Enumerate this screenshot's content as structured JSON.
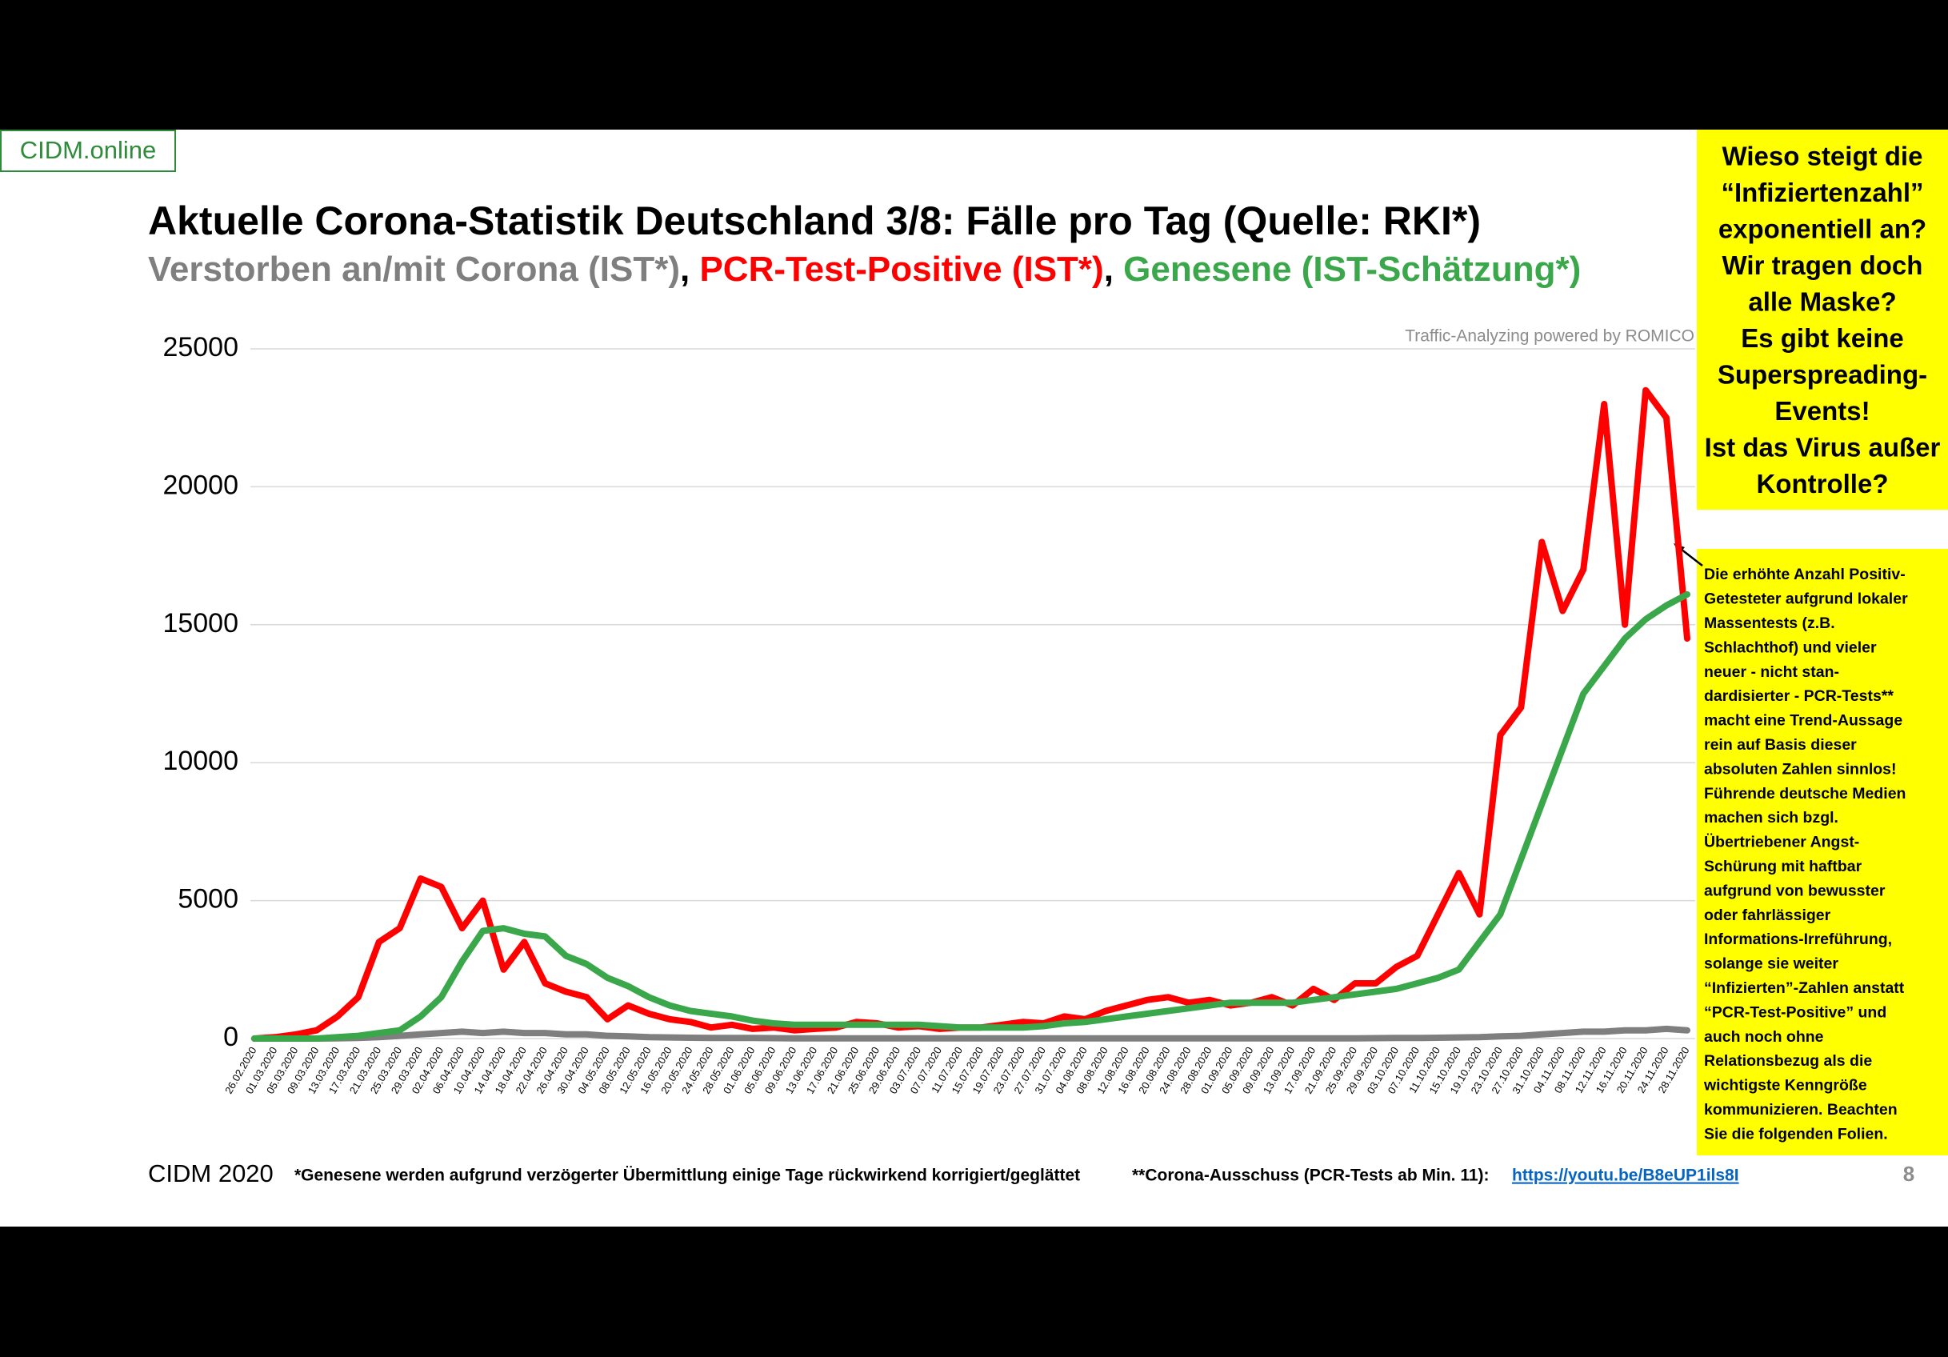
{
  "brand": "CIDM.online",
  "chart_data": {
    "type": "line",
    "title": "Aktuelle Corona-Statistik Deutschland 3/8: Fälle pro Tag (Quelle: RKI*)",
    "subtitle_separator": ",",
    "credit": "Traffic-Analyzing powered by ROMICO",
    "categories": [
      "26.02.2020",
      "01.03.2020",
      "05.03.2020",
      "09.03.2020",
      "13.03.2020",
      "17.03.2020",
      "21.03.2020",
      "25.03.2020",
      "29.03.2020",
      "02.04.2020",
      "06.04.2020",
      "10.04.2020",
      "14.04.2020",
      "18.04.2020",
      "22.04.2020",
      "26.04.2020",
      "30.04.2020",
      "04.05.2020",
      "08.05.2020",
      "12.05.2020",
      "16.05.2020",
      "20.05.2020",
      "24.05.2020",
      "28.05.2020",
      "01.06.2020",
      "05.06.2020",
      "09.06.2020",
      "13.06.2020",
      "17.06.2020",
      "21.06.2020",
      "25.06.2020",
      "29.06.2020",
      "03.07.2020",
      "07.07.2020",
      "11.07.2020",
      "15.07.2020",
      "19.07.2020",
      "23.07.2020",
      "27.07.2020",
      "31.07.2020",
      "04.08.2020",
      "08.08.2020",
      "12.08.2020",
      "16.08.2020",
      "20.08.2020",
      "24.08.2020",
      "28.08.2020",
      "01.09.2020",
      "05.09.2020",
      "09.09.2020",
      "13.09.2020",
      "17.09.2020",
      "21.09.2020",
      "25.09.2020",
      "29.09.2020",
      "03.10.2020",
      "07.10.2020",
      "11.10.2020",
      "15.10.2020",
      "19.10.2020",
      "23.10.2020",
      "27.10.2020",
      "31.10.2020",
      "04.11.2020",
      "08.11.2020",
      "12.11.2020",
      "16.11.2020",
      "20.11.2020",
      "24.11.2020",
      "28.11.2020"
    ],
    "series": [
      {
        "name": "Verstorben an/mit Corona (IST*)",
        "color": "#7f7f7f",
        "values": [
          0,
          0,
          0,
          0,
          5,
          20,
          50,
          100,
          150,
          200,
          250,
          200,
          250,
          200,
          200,
          150,
          150,
          100,
          80,
          50,
          40,
          30,
          20,
          20,
          20,
          15,
          10,
          10,
          10,
          10,
          10,
          10,
          10,
          5,
          5,
          5,
          5,
          5,
          5,
          5,
          5,
          5,
          5,
          5,
          5,
          5,
          5,
          5,
          5,
          5,
          10,
          10,
          10,
          10,
          15,
          20,
          20,
          30,
          40,
          50,
          80,
          100,
          150,
          200,
          250,
          250,
          300,
          300,
          350,
          300
        ]
      },
      {
        "name": "PCR-Test-Positive (IST*)",
        "color": "#ff0000",
        "values": [
          0,
          50,
          150,
          300,
          800,
          1500,
          3500,
          4000,
          5800,
          5500,
          4000,
          5000,
          2500,
          3500,
          2000,
          1700,
          1500,
          700,
          1200,
          900,
          700,
          600,
          400,
          500,
          350,
          400,
          300,
          350,
          400,
          600,
          550,
          400,
          450,
          350,
          400,
          400,
          500,
          600,
          550,
          800,
          700,
          1000,
          1200,
          1400,
          1500,
          1300,
          1400,
          1200,
          1300,
          1500,
          1200,
          1800,
          1400,
          2000,
          2000,
          2600,
          3000,
          4500,
          6000,
          4500,
          11000,
          12000,
          18000,
          15500,
          17000,
          23000,
          15000,
          23500,
          22500,
          14500
        ]
      },
      {
        "name": "Genesene (IST-Schätzung*)",
        "color": "#3aa84a",
        "values": [
          0,
          0,
          0,
          0,
          50,
          100,
          200,
          300,
          800,
          1500,
          2800,
          3900,
          4000,
          3800,
          3700,
          3000,
          2700,
          2200,
          1900,
          1500,
          1200,
          1000,
          900,
          800,
          650,
          550,
          500,
          500,
          500,
          500,
          500,
          500,
          500,
          450,
          400,
          400,
          400,
          400,
          450,
          550,
          600,
          700,
          800,
          900,
          1000,
          1100,
          1200,
          1300,
          1300,
          1300,
          1300,
          1400,
          1500,
          1600,
          1700,
          1800,
          2000,
          2200,
          2500,
          3500,
          4500,
          6500,
          8500,
          10500,
          12500,
          13500,
          14500,
          15200,
          15700,
          16100
        ]
      }
    ],
    "ylim": [
      0,
      25000
    ],
    "yticks": [
      0,
      5000,
      10000,
      15000,
      20000,
      25000
    ],
    "grid": true
  },
  "question_box": [
    "Wieso steigt die",
    "“Infiziertenzahl”",
    "exponentiell an?",
    "Wir tragen doch",
    "alle Maske?",
    "Es gibt keine",
    "Superspreading-",
    "Events!",
    "Ist das Virus außer",
    "Kontrolle?"
  ],
  "note_box": [
    "Die erhöhte Anzahl Positiv-",
    "Getesteter aufgrund lokaler",
    "Massentests (z.B.",
    "Schlachthof) und vieler",
    "neuer - nicht stan-",
    "dardisierter - PCR-Tests**",
    "macht eine Trend-Aussage",
    "rein auf Basis dieser",
    "absoluten Zahlen sinnlos!",
    "Führende deutsche Medien",
    "machen sich bzgl.",
    "Übertriebener Angst-",
    "Schürung mit haftbar",
    "aufgrund von bewusster",
    "oder fahrlässiger",
    "Informations-Irreführung,",
    "solange sie weiter",
    "“Infizierten”-Zahlen anstatt",
    "“PCR-Test-Positive” und",
    "auch noch ohne",
    "Relationsbezug als die",
    "wichtigste Kenngröße",
    "kommunizieren. Beachten",
    "Sie die folgenden Folien."
  ],
  "footer": {
    "left": "CIDM 2020",
    "note1": "*Genesene werden aufgrund verzögerter Übermittlung einige Tage rückwirkend korrigiert/geglättet",
    "note2": "**Corona-Ausschuss (PCR-Tests ab  Min. 11):",
    "link": "https://youtu.be/B8eUP1ils8I",
    "page": "8"
  }
}
